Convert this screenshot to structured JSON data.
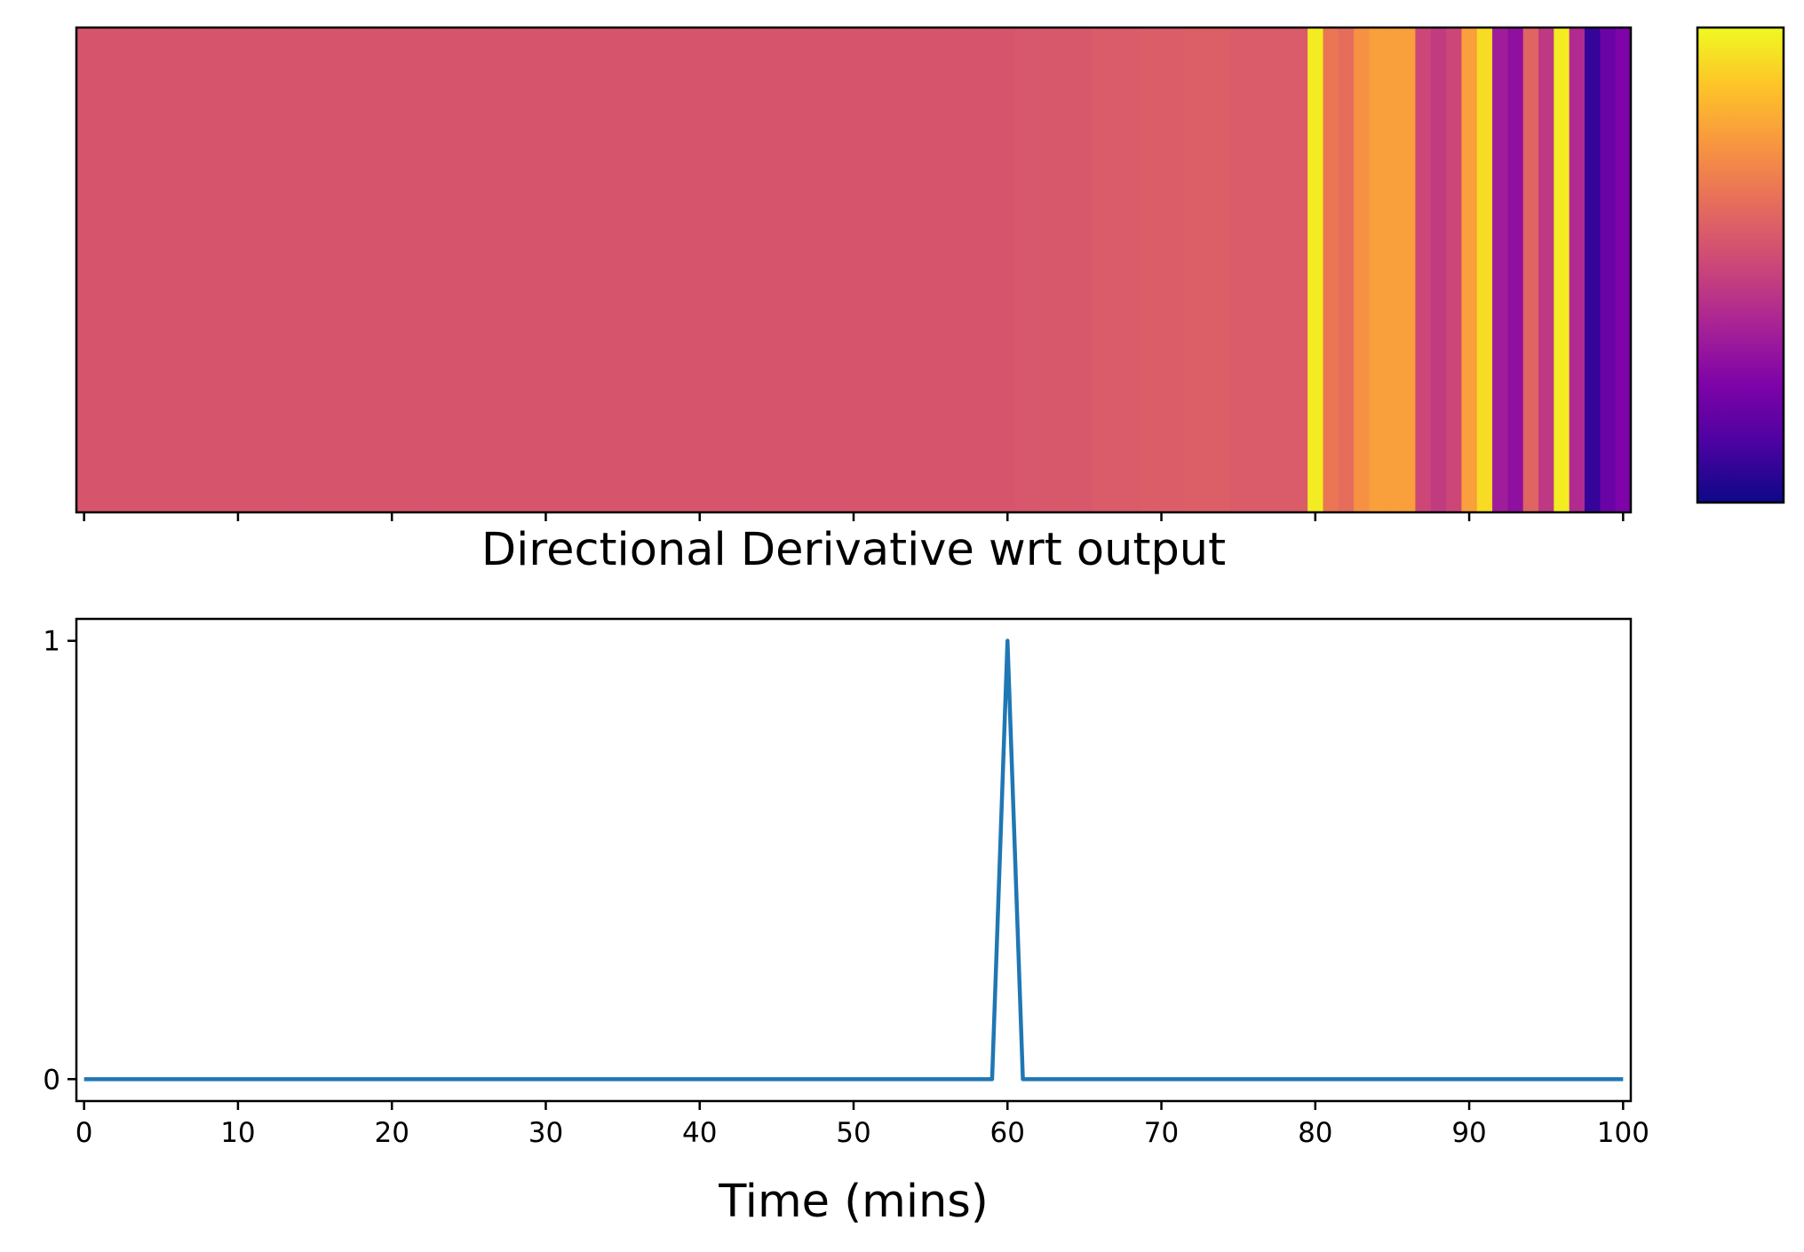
{
  "chart_data": [
    {
      "type": "heatmap",
      "colormap": "plasma",
      "colorbar": true,
      "colorbar_ticks": [],
      "x_ticks": [
        0,
        10,
        20,
        30,
        40,
        50,
        60,
        70,
        80,
        90,
        100
      ],
      "x_tick_labels_shown": false,
      "y_ticks": [],
      "xlim": [
        -0.5,
        100.5
      ],
      "values": [
        0.55,
        0.55,
        0.55,
        0.55,
        0.55,
        0.55,
        0.55,
        0.55,
        0.55,
        0.55,
        0.55,
        0.55,
        0.55,
        0.55,
        0.55,
        0.55,
        0.55,
        0.55,
        0.55,
        0.55,
        0.55,
        0.55,
        0.55,
        0.55,
        0.55,
        0.55,
        0.55,
        0.55,
        0.55,
        0.55,
        0.55,
        0.55,
        0.55,
        0.55,
        0.55,
        0.55,
        0.55,
        0.55,
        0.55,
        0.55,
        0.55,
        0.55,
        0.55,
        0.55,
        0.55,
        0.55,
        0.55,
        0.55,
        0.55,
        0.55,
        0.55,
        0.55,
        0.55,
        0.55,
        0.55,
        0.55,
        0.55,
        0.55,
        0.55,
        0.55,
        0.55,
        0.555,
        0.555,
        0.56,
        0.56,
        0.56,
        0.57,
        0.57,
        0.57,
        0.575,
        0.575,
        0.575,
        0.58,
        0.58,
        0.58,
        0.57,
        0.57,
        0.57,
        0.57,
        0.57,
        0.97,
        0.66,
        0.63,
        0.74,
        0.78,
        0.78,
        0.78,
        0.5,
        0.46,
        0.5,
        0.78,
        0.93,
        0.35,
        0.3,
        0.6,
        0.45,
        0.97,
        0.4,
        0.08,
        0.2,
        0.25
      ]
    },
    {
      "type": "line",
      "title": "Directional Derivative wrt output",
      "xlabel": "Time (mins)",
      "ylabel": "",
      "xlim": [
        -0.5,
        100.5
      ],
      "ylim": [
        -0.05,
        1.05
      ],
      "x_ticks": [
        "0",
        "10",
        "20",
        "30",
        "40",
        "50",
        "60",
        "70",
        "80",
        "90",
        "100"
      ],
      "y_ticks": [
        "0",
        "1"
      ],
      "grid": false,
      "line_color": "#1f77b4",
      "x": [
        0,
        1,
        2,
        3,
        4,
        5,
        6,
        7,
        8,
        9,
        10,
        11,
        12,
        13,
        14,
        15,
        16,
        17,
        18,
        19,
        20,
        21,
        22,
        23,
        24,
        25,
        26,
        27,
        28,
        29,
        30,
        31,
        32,
        33,
        34,
        35,
        36,
        37,
        38,
        39,
        40,
        41,
        42,
        43,
        44,
        45,
        46,
        47,
        48,
        49,
        50,
        51,
        52,
        53,
        54,
        55,
        56,
        57,
        58,
        59,
        60,
        61,
        62,
        63,
        64,
        65,
        66,
        67,
        68,
        69,
        70,
        71,
        72,
        73,
        74,
        75,
        76,
        77,
        78,
        79,
        80,
        81,
        82,
        83,
        84,
        85,
        86,
        87,
        88,
        89,
        90,
        91,
        92,
        93,
        94,
        95,
        96,
        97,
        98,
        99,
        100
      ],
      "y": [
        0,
        0,
        0,
        0,
        0,
        0,
        0,
        0,
        0,
        0,
        0,
        0,
        0,
        0,
        0,
        0,
        0,
        0,
        0,
        0,
        0,
        0,
        0,
        0,
        0,
        0,
        0,
        0,
        0,
        0,
        0,
        0,
        0,
        0,
        0,
        0,
        0,
        0,
        0,
        0,
        0,
        0,
        0,
        0,
        0,
        0,
        0,
        0,
        0,
        0,
        0,
        0,
        0,
        0,
        0,
        0,
        0,
        0,
        0,
        0,
        1,
        0,
        0,
        0,
        0,
        0,
        0,
        0,
        0,
        0,
        0,
        0,
        0,
        0,
        0,
        0,
        0,
        0,
        0,
        0,
        0,
        0,
        0,
        0,
        0,
        0,
        0,
        0,
        0,
        0,
        0,
        0,
        0,
        0,
        0,
        0,
        0,
        0,
        0,
        0,
        0
      ]
    }
  ]
}
